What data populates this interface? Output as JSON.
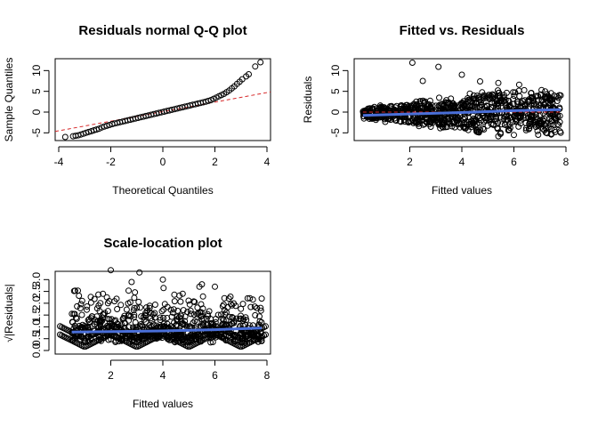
{
  "chart_data": [
    {
      "type": "scatter",
      "title": "Residuals normal Q-Q plot",
      "xlabel": "Theoretical Quantiles",
      "ylabel": "Sample Quantiles",
      "xlim": [
        -4,
        4
      ],
      "ylim": [
        -6,
        12
      ],
      "xticks": [
        -4,
        -2,
        0,
        2,
        4
      ],
      "yticks": [
        -5,
        0,
        5,
        10
      ],
      "reference_line": {
        "color": "#d62728",
        "style": "dashed",
        "intercept": 0.1,
        "slope": 1.15
      },
      "points": [
        [
          -3.75,
          -6.0
        ],
        [
          -3.45,
          -5.8
        ],
        [
          -3.35,
          -5.7
        ],
        [
          -3.25,
          -5.6
        ],
        [
          -3.15,
          -5.4
        ],
        [
          -3.05,
          -5.2
        ],
        [
          -2.95,
          -5.0
        ],
        [
          -2.85,
          -4.8
        ],
        [
          -2.75,
          -4.6
        ],
        [
          -2.65,
          -4.4
        ],
        [
          -2.55,
          -4.2
        ],
        [
          -2.45,
          -4.0
        ],
        [
          -2.35,
          -3.7
        ],
        [
          -2.25,
          -3.5
        ],
        [
          -2.15,
          -3.3
        ],
        [
          -2.05,
          -3.1
        ],
        [
          -1.95,
          -2.9
        ],
        [
          -1.85,
          -2.75
        ],
        [
          -1.75,
          -2.6
        ],
        [
          -1.65,
          -2.45
        ],
        [
          -1.55,
          -2.3
        ],
        [
          -1.45,
          -2.15
        ],
        [
          -1.35,
          -2.0
        ],
        [
          -1.25,
          -1.85
        ],
        [
          -1.15,
          -1.7
        ],
        [
          -1.05,
          -1.55
        ],
        [
          -0.95,
          -1.4
        ],
        [
          -0.85,
          -1.25
        ],
        [
          -0.75,
          -1.1
        ],
        [
          -0.65,
          -0.95
        ],
        [
          -0.55,
          -0.8
        ],
        [
          -0.45,
          -0.65
        ],
        [
          -0.35,
          -0.5
        ],
        [
          -0.25,
          -0.35
        ],
        [
          -0.15,
          -0.2
        ],
        [
          -0.05,
          -0.05
        ],
        [
          0.05,
          0.1
        ],
        [
          0.15,
          0.25
        ],
        [
          0.25,
          0.4
        ],
        [
          0.35,
          0.55
        ],
        [
          0.45,
          0.7
        ],
        [
          0.55,
          0.85
        ],
        [
          0.65,
          1.0
        ],
        [
          0.75,
          1.15
        ],
        [
          0.85,
          1.3
        ],
        [
          0.95,
          1.45
        ],
        [
          1.05,
          1.6
        ],
        [
          1.15,
          1.75
        ],
        [
          1.25,
          1.9
        ],
        [
          1.35,
          2.05
        ],
        [
          1.45,
          2.2
        ],
        [
          1.55,
          2.35
        ],
        [
          1.65,
          2.5
        ],
        [
          1.75,
          2.7
        ],
        [
          1.85,
          2.9
        ],
        [
          1.95,
          3.2
        ],
        [
          2.05,
          3.5
        ],
        [
          2.15,
          3.8
        ],
        [
          2.25,
          4.1
        ],
        [
          2.35,
          4.4
        ],
        [
          2.45,
          4.8
        ],
        [
          2.55,
          5.2
        ],
        [
          2.65,
          5.7
        ],
        [
          2.75,
          6.2
        ],
        [
          2.85,
          6.8
        ],
        [
          2.95,
          7.3
        ],
        [
          3.05,
          7.9
        ],
        [
          3.2,
          8.6
        ],
        [
          3.3,
          9.1
        ],
        [
          3.55,
          11.0
        ],
        [
          3.75,
          12.0
        ]
      ]
    },
    {
      "type": "scatter",
      "title": "Fitted vs. Residuals",
      "xlabel": "Fitted values",
      "ylabel": "Residuals",
      "xlim": [
        0,
        8
      ],
      "ylim": [
        -6,
        12
      ],
      "xticks": [
        2,
        4,
        6,
        8
      ],
      "yticks": [
        -5,
        0,
        5,
        10
      ],
      "trend": {
        "color": "#4a6fd8",
        "points": [
          [
            0.2,
            -0.8
          ],
          [
            2,
            -0.45
          ],
          [
            4,
            -0.1
          ],
          [
            6,
            0.35
          ],
          [
            7.8,
            0.6
          ]
        ]
      },
      "zero_line": {
        "color": "#d62728",
        "y": 0
      },
      "outliers": [
        [
          2.1,
          11.9
        ],
        [
          3.1,
          10.9
        ],
        [
          4.0,
          9.0
        ],
        [
          2.5,
          7.5
        ],
        [
          4.7,
          7.4
        ],
        [
          5.4,
          7.0
        ],
        [
          6.2,
          6.6
        ],
        [
          7.2,
          5.0
        ],
        [
          7.8,
          4.0
        ],
        [
          7.8,
          -5.0
        ],
        [
          6.0,
          -5.5
        ],
        [
          5.4,
          -5.8
        ]
      ]
    },
    {
      "type": "scatter",
      "title": "Scale-location plot",
      "xlabel": "Fitted values",
      "ylabel": "√|Residuals|",
      "xlim": [
        0,
        8
      ],
      "ylim": [
        0,
        3.2
      ],
      "xticks": [
        2,
        4,
        6,
        8
      ],
      "yticks": [
        0.0,
        0.5,
        1.0,
        1.5,
        2.0,
        2.5,
        3.0
      ],
      "ytick_labels": [
        "0.0",
        "",
        "1.0",
        "",
        "2.0",
        "",
        "3.0"
      ],
      "ytick_labels_minor": [
        "",
        "0.5",
        "",
        "1.5",
        "",
        "2.5",
        ""
      ],
      "trend": {
        "color": "#4a6fd8",
        "points": [
          [
            0.5,
            0.78
          ],
          [
            2,
            0.8
          ],
          [
            4,
            0.83
          ],
          [
            6,
            0.88
          ],
          [
            7.8,
            0.95
          ]
        ]
      },
      "outliers": [
        [
          2.0,
          3.4
        ],
        [
          3.1,
          3.3
        ],
        [
          4.0,
          3.0
        ],
        [
          2.8,
          2.9
        ],
        [
          1.7,
          2.4
        ],
        [
          5.5,
          2.8
        ],
        [
          6.0,
          2.7
        ],
        [
          7.8,
          2.2
        ],
        [
          7.8,
          0.4
        ],
        [
          0.9,
          2.1
        ]
      ]
    }
  ]
}
